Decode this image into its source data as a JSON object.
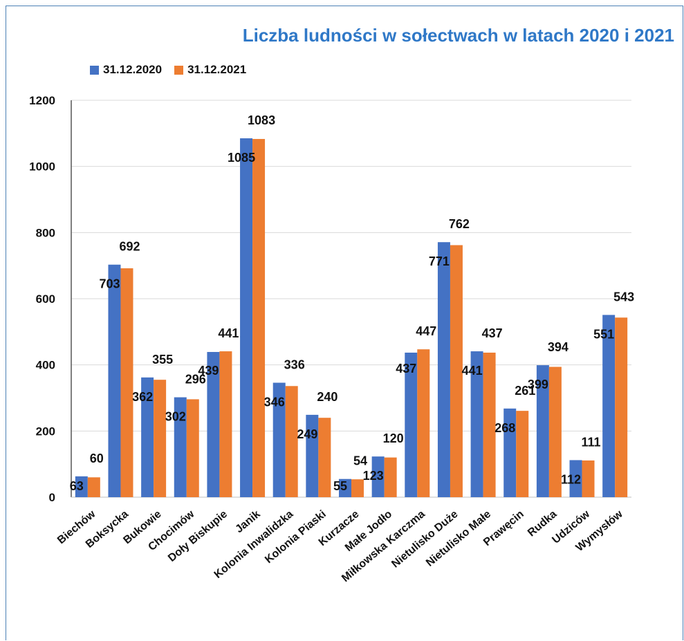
{
  "chart_data": {
    "type": "bar",
    "title": "Liczba ludności w sołectwach w latach 2020 i 2021",
    "xlabel": "",
    "ylabel": "",
    "ylim": [
      0,
      1200
    ],
    "yticks": [
      0,
      200,
      400,
      600,
      800,
      1000,
      1200
    ],
    "grid": true,
    "legend_position": "top-left",
    "categories": [
      "Biechów",
      "Boksycka",
      "Bukowie",
      "Chocimów",
      "Doły Biskupie",
      "Janik",
      "Kolonia Inwalidzka",
      "Kolonia Piaski",
      "Kurzacze",
      "Małe Jodło",
      "Miłkowska Karczma",
      "Nietulisko Duże",
      "Nietulisko Małe",
      "Prawęcin",
      "Rudka",
      "Udziców",
      "Wymysłów"
    ],
    "series": [
      {
        "name": "31.12.2020",
        "color": "#4472c4",
        "values": [
          63,
          703,
          362,
          302,
          439,
          1085,
          346,
          249,
          55,
          123,
          437,
          771,
          441,
          268,
          399,
          112,
          551
        ]
      },
      {
        "name": "31.12.2021",
        "color": "#ed7d31",
        "values": [
          60,
          692,
          355,
          296,
          441,
          1083,
          336,
          240,
          54,
          120,
          447,
          762,
          437,
          261,
          394,
          111,
          543
        ]
      }
    ]
  }
}
